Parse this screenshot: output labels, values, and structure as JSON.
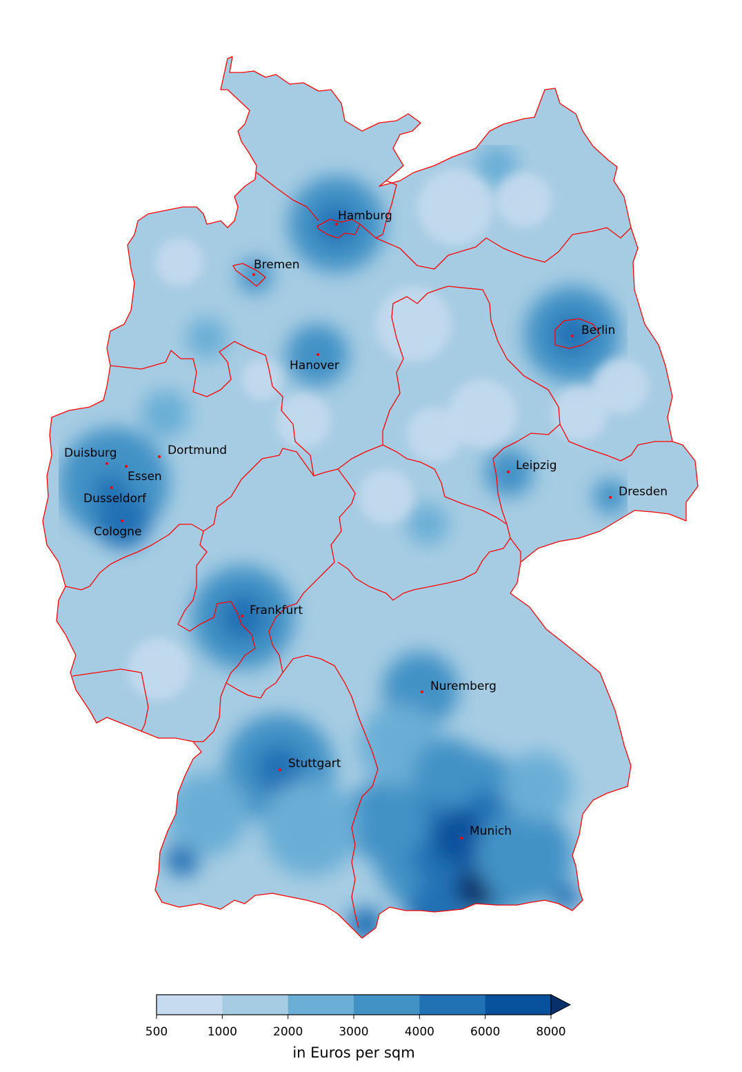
{
  "map": {
    "colors": {
      "border": "#ff0000",
      "city_marker": "#ff0000",
      "bins": [
        "#c6dbef",
        "#a6cce3",
        "#6baed6",
        "#4292c6",
        "#2171b5",
        "#08519c",
        "#08306b"
      ]
    },
    "cities": [
      {
        "name": "Hamburg"
      },
      {
        "name": "Bremen"
      },
      {
        "name": "Berlin"
      },
      {
        "name": "Hanover"
      },
      {
        "name": "Duisburg"
      },
      {
        "name": "Dortmund"
      },
      {
        "name": "Essen"
      },
      {
        "name": "Dusseldorf"
      },
      {
        "name": "Cologne"
      },
      {
        "name": "Leipzig"
      },
      {
        "name": "Dresden"
      },
      {
        "name": "Frankfurt"
      },
      {
        "name": "Nuremberg"
      },
      {
        "name": "Stuttgart"
      },
      {
        "name": "Munich"
      }
    ]
  },
  "colorbar": {
    "label": "in Euros per sqm",
    "ticks": [
      "500",
      "1000",
      "2000",
      "3000",
      "4000",
      "6000",
      "8000"
    ],
    "extend": "max"
  }
}
